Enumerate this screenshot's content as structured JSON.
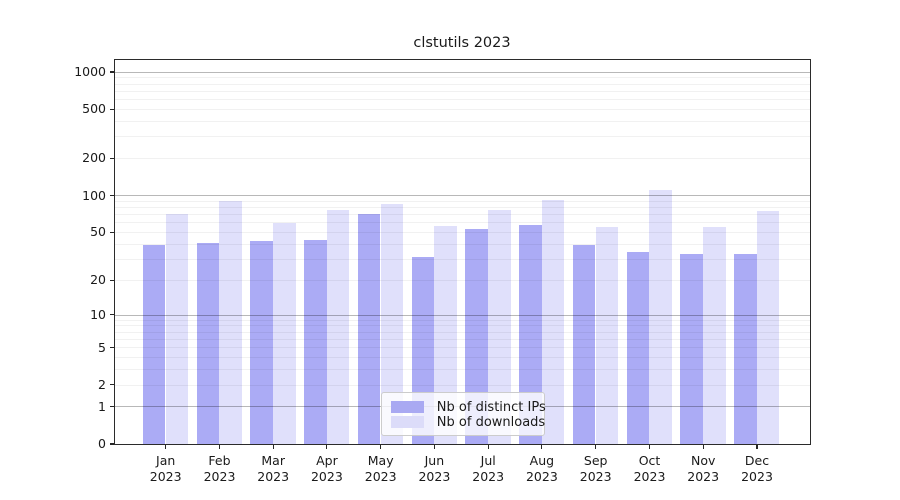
{
  "title": "clstutils 2023",
  "chart_data": {
    "type": "bar",
    "title": "clstutils 2023",
    "yscale": "log1p",
    "grid": "both-major-and-minor",
    "legend_position": "lower center",
    "categories": [
      "Jan",
      "Feb",
      "Mar",
      "Apr",
      "May",
      "Jun",
      "Jul",
      "Aug",
      "Sep",
      "Oct",
      "Nov",
      "Dec"
    ],
    "x_year": "2023",
    "series": [
      {
        "key": "distinct-ips",
        "name": "Nb of distinct IPs",
        "css_color": "rgba(72,72,233,0.46)",
        "swatch_color": "#a9a9f2",
        "values": [
          39,
          41,
          42,
          43,
          70,
          31,
          53,
          57,
          39,
          34,
          33,
          33
        ]
      },
      {
        "key": "downloads",
        "name": "Nb of downloads",
        "css_color": "rgba(72,72,233,0.17)",
        "swatch_color": "#dcdcf9",
        "values": [
          70,
          90,
          59,
          76,
          85,
          56,
          76,
          92,
          55,
          110,
          55,
          75
        ]
      }
    ],
    "y_ticks": [
      0,
      1,
      2,
      5,
      10,
      20,
      50,
      100,
      200,
      500,
      1000
    ],
    "y_gridlines_major": [
      1,
      10,
      100,
      1000
    ],
    "y_gridlines_minor": [
      2,
      3,
      4,
      5,
      6,
      7,
      8,
      9,
      20,
      30,
      40,
      50,
      60,
      70,
      80,
      90,
      200,
      300,
      400,
      500,
      600,
      700,
      800,
      900
    ],
    "ylim": [
      0,
      1250
    ]
  }
}
